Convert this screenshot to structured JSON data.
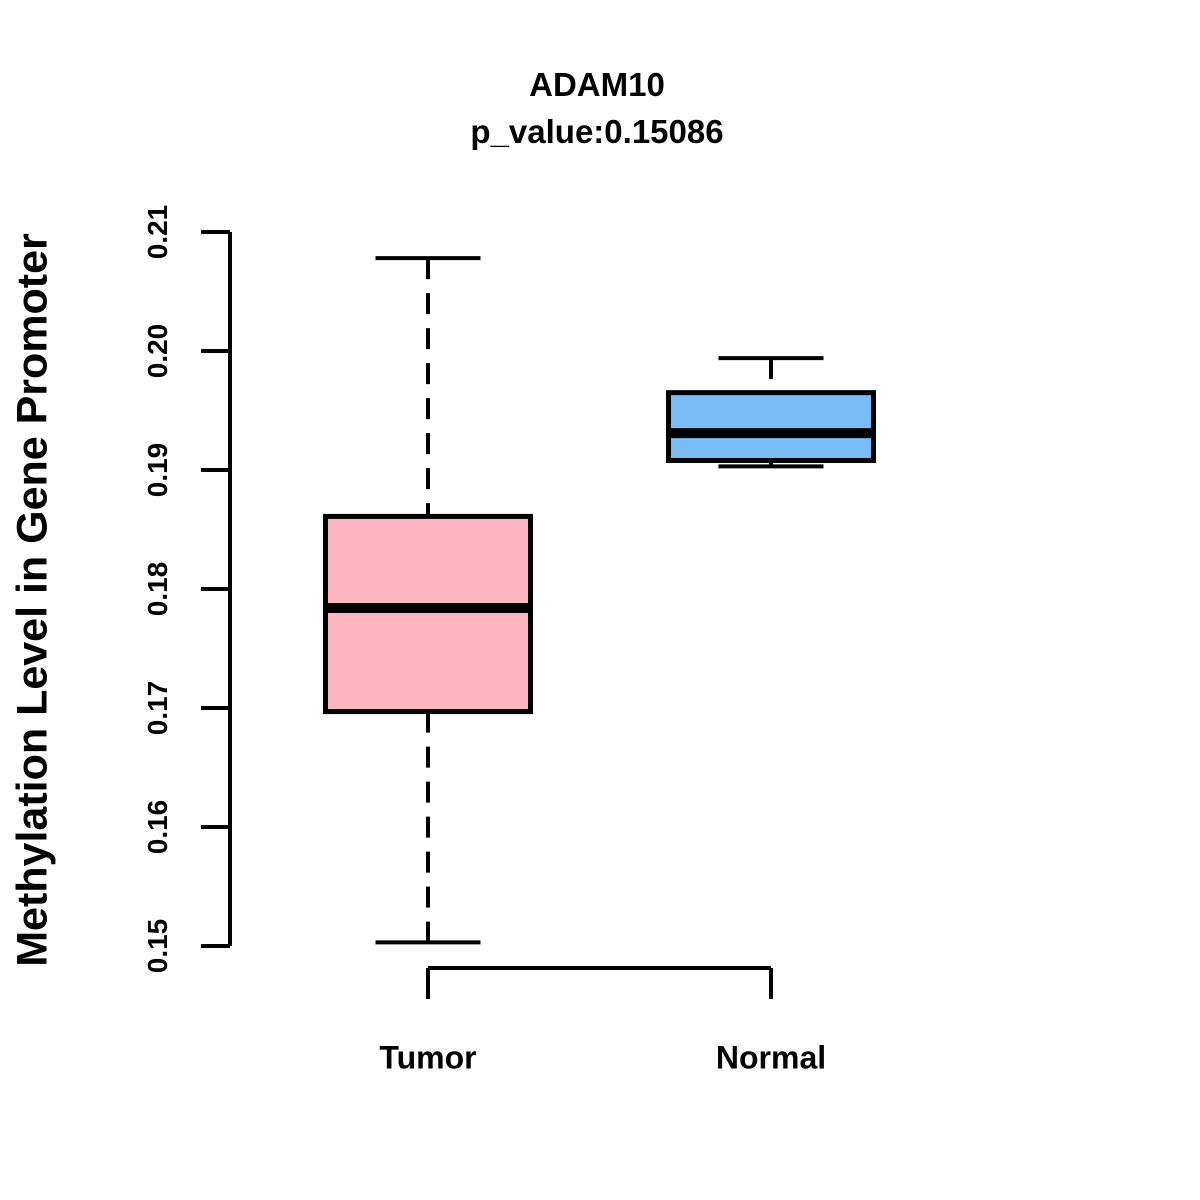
{
  "chart": {
    "title": "ADAM10",
    "subtitle": "p_value:0.15086",
    "ylabel": "Methylation Level in Gene Promoter"
  },
  "chart_data": {
    "type": "boxplot",
    "title": "ADAM10",
    "subtitle": "p_value:0.15086",
    "gene": "ADAM10",
    "p_value": 0.15086,
    "xlabel": "",
    "ylabel": "Methylation Level in Gene Promoter",
    "categories": [
      "Tumor",
      "Normal"
    ],
    "series": [
      {
        "name": "Tumor",
        "min": 0.1503,
        "q1": 0.1697,
        "median": 0.1784,
        "q3": 0.1861,
        "max": 0.2078,
        "fill": "#FFB6C1"
      },
      {
        "name": "Normal",
        "min": 0.1903,
        "q1": 0.1908,
        "median": 0.1931,
        "q3": 0.1965,
        "max": 0.1994,
        "fill": "#79BDF7"
      }
    ],
    "ylim": [
      0.15,
      0.21
    ],
    "yticks": [
      0.15,
      0.16,
      0.17,
      0.18,
      0.19,
      0.2,
      0.21
    ],
    "ytick_labels": [
      "0.15",
      "0.16",
      "0.17",
      "0.18",
      "0.19",
      "0.20",
      "0.21"
    ],
    "ytick_label_rotation": 90,
    "grid": false,
    "legend_position": "none",
    "whisker_style": "dashed",
    "line_color": "#000000",
    "background_color": "#FFFFFF"
  }
}
